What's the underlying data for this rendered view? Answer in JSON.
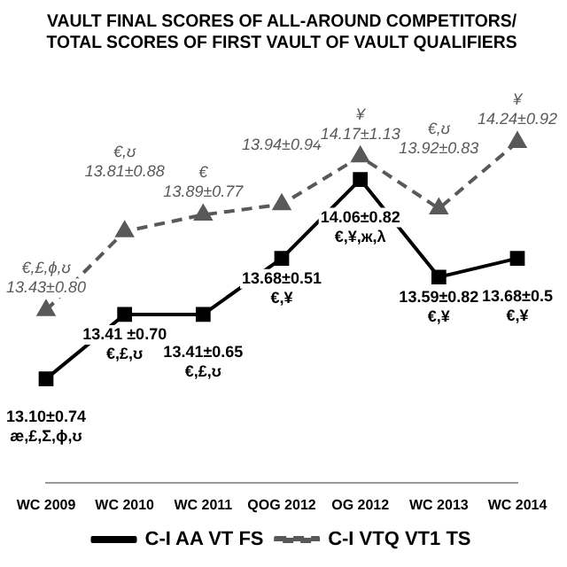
{
  "chart_data": {
    "type": "line",
    "title": "VAULT FINAL SCORES OF ALL-AROUND COMPETITORS/\nTOTAL SCORES OF FIRST VAULT OF VAULT QUALIFIERS",
    "categories": [
      "WC 2009",
      "WC 2010",
      "WC 2011",
      "QOG 2012",
      "OG 2012",
      "WC 2013",
      "WC 2014"
    ],
    "series": [
      {
        "name": "C-I AA VT FS",
        "color": "#000000",
        "marker": "square",
        "line_style": "solid",
        "values": [
          13.1,
          13.41,
          13.41,
          13.68,
          14.06,
          13.59,
          13.68
        ],
        "value_labels": [
          "13.10±0.74\næ,£,Σ,ϕ,ʊ",
          "13.41 ±0.70\n€,£,ʊ",
          "13.41±0.65\n€,£,ʊ",
          "13.68±0.51\n€,¥",
          "14.06±0.82\n€,¥,ж,λ",
          "13.59±0.82\n€,¥",
          "13.68±0.5\n€,¥"
        ]
      },
      {
        "name": "C-I VTQ VT1 TS",
        "color": "#595959",
        "marker": "triangle",
        "line_style": "dashed",
        "values": [
          13.43,
          13.81,
          13.89,
          13.94,
          14.17,
          13.92,
          14.24
        ],
        "value_labels": [
          "€,£,ϕ,ʊ\n13.43±0.80",
          "€,ʊ\n13.81±0.88",
          "€\n13.89±0.77",
          "13.94±0.94",
          "¥\n14.17±1.13",
          "€,ʊ\n13.92±0.83",
          "¥\n14.24±0.92"
        ]
      }
    ],
    "legend": "bottom",
    "grid": false
  }
}
